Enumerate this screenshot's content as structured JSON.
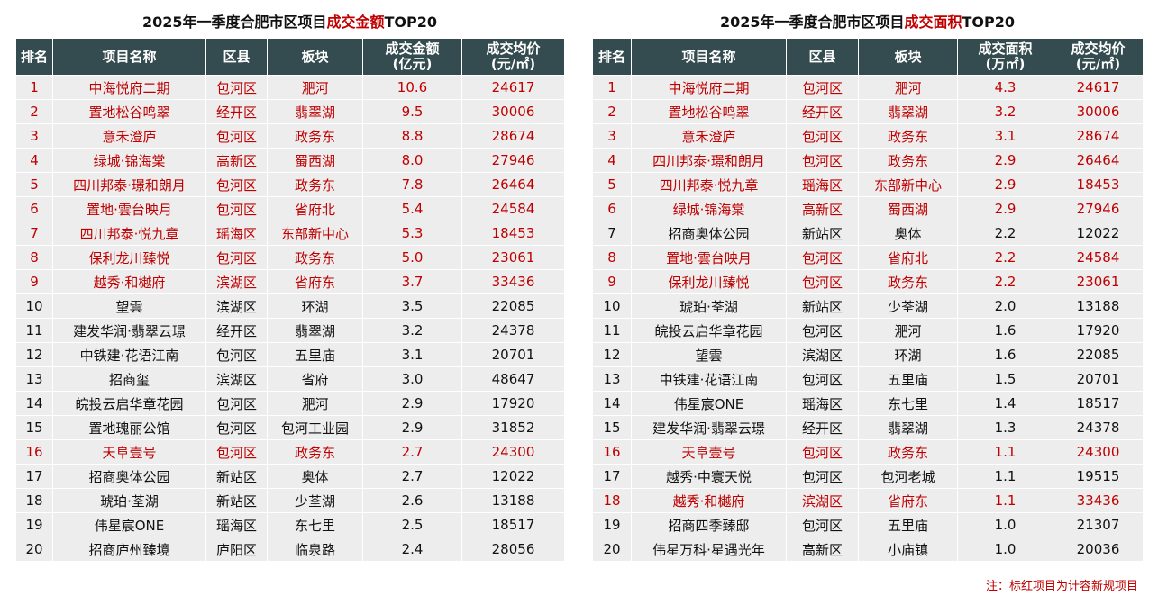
{
  "tables": [
    {
      "title": "2025年一季度合肥市区项目",
      "title_highlight": "成交金额",
      "title_suffix": "TOP20",
      "headers": [
        [
          "排名"
        ],
        [
          "项目名称"
        ],
        [
          "区县"
        ],
        [
          "板块"
        ],
        [
          "成交金额",
          "(亿元)"
        ],
        [
          "成交均价",
          "(元/㎡)"
        ]
      ],
      "rows": [
        {
          "red": true,
          "cells": [
            "1",
            "中海悦府二期",
            "包河区",
            "淝河",
            "10.6",
            "24617"
          ]
        },
        {
          "red": true,
          "cells": [
            "2",
            "置地松谷鸣翠",
            "经开区",
            "翡翠湖",
            "9.5",
            "30006"
          ]
        },
        {
          "red": true,
          "cells": [
            "3",
            "意禾澄庐",
            "包河区",
            "政务东",
            "8.8",
            "28674"
          ]
        },
        {
          "red": true,
          "cells": [
            "4",
            "绿城·锦海棠",
            "高新区",
            "蜀西湖",
            "8.0",
            "27946"
          ]
        },
        {
          "red": true,
          "cells": [
            "5",
            "四川邦泰·璟和朗月",
            "包河区",
            "政务东",
            "7.8",
            "26464"
          ]
        },
        {
          "red": true,
          "cells": [
            "6",
            "置地·雲台映月",
            "包河区",
            "省府北",
            "5.4",
            "24584"
          ]
        },
        {
          "red": true,
          "cells": [
            "7",
            "四川邦泰·悦九章",
            "瑶海区",
            "东部新中心",
            "5.3",
            "18453"
          ]
        },
        {
          "red": true,
          "cells": [
            "8",
            "保利龙川臻悦",
            "包河区",
            "政务东",
            "5.0",
            "23061"
          ]
        },
        {
          "red": true,
          "cells": [
            "9",
            "越秀·和樾府",
            "滨湖区",
            "省府东",
            "3.7",
            "33436"
          ]
        },
        {
          "red": false,
          "cells": [
            "10",
            "望雲",
            "滨湖区",
            "环湖",
            "3.5",
            "22085"
          ]
        },
        {
          "red": false,
          "cells": [
            "11",
            "建发华润·翡翠云璟",
            "经开区",
            "翡翠湖",
            "3.2",
            "24378"
          ]
        },
        {
          "red": false,
          "cells": [
            "12",
            "中铁建·花语江南",
            "包河区",
            "五里庙",
            "3.1",
            "20701"
          ]
        },
        {
          "red": false,
          "cells": [
            "13",
            "招商玺",
            "滨湖区",
            "省府",
            "3.0",
            "48647"
          ]
        },
        {
          "red": false,
          "cells": [
            "14",
            "皖投云启华章花园",
            "包河区",
            "淝河",
            "2.9",
            "17920"
          ]
        },
        {
          "red": false,
          "cells": [
            "15",
            "置地瑰丽公馆",
            "包河区",
            "包河工业园",
            "2.9",
            "31852"
          ]
        },
        {
          "red": true,
          "cells": [
            "16",
            "天阜壹号",
            "包河区",
            "政务东",
            "2.7",
            "24300"
          ]
        },
        {
          "red": false,
          "cells": [
            "17",
            "招商奥体公园",
            "新站区",
            "奥体",
            "2.7",
            "12022"
          ]
        },
        {
          "red": false,
          "cells": [
            "18",
            "琥珀·荃湖",
            "新站区",
            "少荃湖",
            "2.6",
            "13188"
          ]
        },
        {
          "red": false,
          "cells": [
            "19",
            "伟星宸ONE",
            "瑶海区",
            "东七里",
            "2.5",
            "18517"
          ]
        },
        {
          "red": false,
          "cells": [
            "20",
            "招商庐州臻境",
            "庐阳区",
            "临泉路",
            "2.4",
            "28056"
          ]
        }
      ]
    },
    {
      "title": "2025年一季度合肥市区项目",
      "title_highlight": "成交面积",
      "title_suffix": "TOP20",
      "headers": [
        [
          "排名"
        ],
        [
          "项目名称"
        ],
        [
          "区县"
        ],
        [
          "板块"
        ],
        [
          "成交面积",
          "(万㎡)"
        ],
        [
          "成交均价",
          "(元/㎡)"
        ]
      ],
      "rows": [
        {
          "red": true,
          "cells": [
            "1",
            "中海悦府二期",
            "包河区",
            "淝河",
            "4.3",
            "24617"
          ]
        },
        {
          "red": true,
          "cells": [
            "2",
            "置地松谷鸣翠",
            "经开区",
            "翡翠湖",
            "3.2",
            "30006"
          ]
        },
        {
          "red": true,
          "cells": [
            "3",
            "意禾澄庐",
            "包河区",
            "政务东",
            "3.1",
            "28674"
          ]
        },
        {
          "red": true,
          "cells": [
            "4",
            "四川邦泰·璟和朗月",
            "包河区",
            "政务东",
            "2.9",
            "26464"
          ]
        },
        {
          "red": true,
          "cells": [
            "5",
            "四川邦泰·悦九章",
            "瑶海区",
            "东部新中心",
            "2.9",
            "18453"
          ]
        },
        {
          "red": true,
          "cells": [
            "6",
            "绿城·锦海棠",
            "高新区",
            "蜀西湖",
            "2.9",
            "27946"
          ]
        },
        {
          "red": false,
          "cells": [
            "7",
            "招商奥体公园",
            "新站区",
            "奥体",
            "2.2",
            "12022"
          ]
        },
        {
          "red": true,
          "cells": [
            "8",
            "置地·雲台映月",
            "包河区",
            "省府北",
            "2.2",
            "24584"
          ]
        },
        {
          "red": true,
          "cells": [
            "9",
            "保利龙川臻悦",
            "包河区",
            "政务东",
            "2.2",
            "23061"
          ]
        },
        {
          "red": false,
          "cells": [
            "10",
            "琥珀·荃湖",
            "新站区",
            "少荃湖",
            "2.0",
            "13188"
          ]
        },
        {
          "red": false,
          "cells": [
            "11",
            "皖投云启华章花园",
            "包河区",
            "淝河",
            "1.6",
            "17920"
          ]
        },
        {
          "red": false,
          "cells": [
            "12",
            "望雲",
            "滨湖区",
            "环湖",
            "1.6",
            "22085"
          ]
        },
        {
          "red": false,
          "cells": [
            "13",
            "中铁建·花语江南",
            "包河区",
            "五里庙",
            "1.5",
            "20701"
          ]
        },
        {
          "red": false,
          "cells": [
            "14",
            "伟星宸ONE",
            "瑶海区",
            "东七里",
            "1.4",
            "18517"
          ]
        },
        {
          "red": false,
          "cells": [
            "15",
            "建发华润·翡翠云璟",
            "经开区",
            "翡翠湖",
            "1.3",
            "24378"
          ]
        },
        {
          "red": true,
          "cells": [
            "16",
            "天阜壹号",
            "包河区",
            "政务东",
            "1.1",
            "24300"
          ]
        },
        {
          "red": false,
          "cells": [
            "17",
            "越秀·中寰天悦",
            "包河区",
            "包河老城",
            "1.1",
            "19515"
          ]
        },
        {
          "red": true,
          "cells": [
            "18",
            "越秀·和樾府",
            "滨湖区",
            "省府东",
            "1.1",
            "33436"
          ]
        },
        {
          "red": false,
          "cells": [
            "19",
            "招商四季臻邸",
            "包河区",
            "五里庙",
            "1.0",
            "21307"
          ]
        },
        {
          "red": false,
          "cells": [
            "20",
            "伟星万科·星遇光年",
            "高新区",
            "小庙镇",
            "1.0",
            "20036"
          ]
        }
      ]
    }
  ],
  "note": "注：标红项目为计容新规项目"
}
